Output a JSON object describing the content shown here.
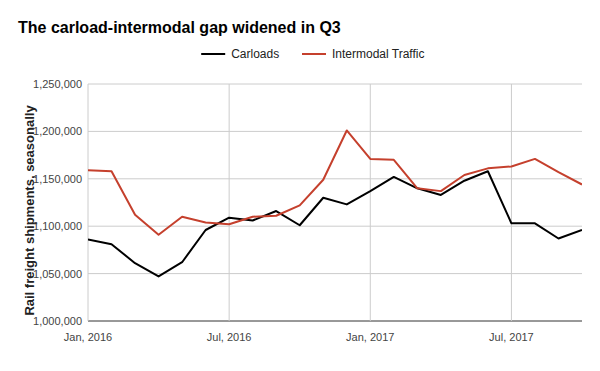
{
  "chart_data": {
    "type": "line",
    "title": "The carload-intermodal gap widened in Q3",
    "y_label": "Rail freight shipments, seasonally",
    "categories": [
      "Jan, 2016",
      null,
      null,
      null,
      null,
      null,
      "Jul, 2016",
      null,
      null,
      null,
      null,
      null,
      "Jan, 2017",
      null,
      null,
      null,
      null,
      null,
      "Jul, 2017",
      null,
      null,
      null
    ],
    "series": [
      {
        "name": "Carloads",
        "color": "#000000",
        "values": [
          1086000,
          1081000,
          1061000,
          1047000,
          1062000,
          1096000,
          1109000,
          1106000,
          1116000,
          1101000,
          1130000,
          1123000,
          1137000,
          1152000,
          1140000,
          1133000,
          1148000,
          1158000,
          1103000,
          1103000,
          1087000,
          1096000
        ]
      },
      {
        "name": "Intermodal Traffic",
        "color": "#c5402d",
        "values": [
          1159000,
          1158000,
          1112000,
          1091000,
          1110000,
          1104000,
          1102000,
          1110000,
          1111000,
          1122000,
          1149000,
          1201000,
          1171000,
          1170000,
          1140000,
          1137000,
          1154000,
          1161000,
          1163000,
          1171000,
          1157000,
          1144000
        ]
      }
    ],
    "ylim": [
      1000000,
      1250000
    ],
    "yticks": [
      {
        "value": 1000000,
        "label": "1,000,000"
      },
      {
        "value": 1050000,
        "label": "1,050,000"
      },
      {
        "value": 1100000,
        "label": "1,100,000"
      },
      {
        "value": 1150000,
        "label": "1,150,000"
      },
      {
        "value": 1200000,
        "label": "1,200,000"
      },
      {
        "value": 1250000,
        "label": "1,250,000"
      }
    ],
    "grid": true,
    "legend": "top"
  }
}
